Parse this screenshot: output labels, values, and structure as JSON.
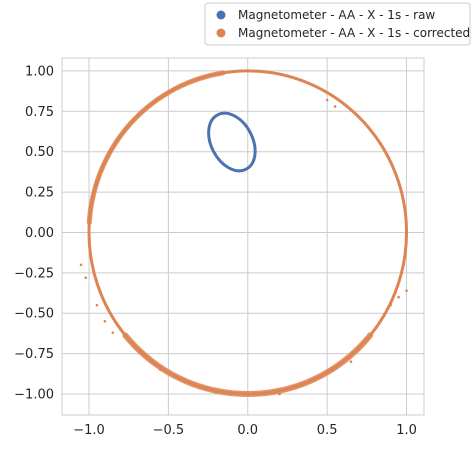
{
  "chart_data": {
    "type": "scatter",
    "title": "",
    "xlabel": "",
    "ylabel": "",
    "xlim": [
      -1.17,
      1.11
    ],
    "ylim": [
      -1.13,
      1.08
    ],
    "grid": true,
    "legend_placement": "top-right, above plot",
    "x_ticks": [
      {
        "value": -1.0,
        "label": "−1.0"
      },
      {
        "value": -0.5,
        "label": "−0.5"
      },
      {
        "value": 0.0,
        "label": "0.0"
      },
      {
        "value": 0.5,
        "label": "0.5"
      },
      {
        "value": 1.0,
        "label": "1.0"
      }
    ],
    "y_ticks": [
      {
        "value": 1.0,
        "label": "1.00"
      },
      {
        "value": 0.75,
        "label": "0.75"
      },
      {
        "value": 0.5,
        "label": "0.50"
      },
      {
        "value": 0.25,
        "label": "0.25"
      },
      {
        "value": 0.0,
        "label": "0.00"
      },
      {
        "value": -0.25,
        "label": "−0.25"
      },
      {
        "value": -0.5,
        "label": "−0.50"
      },
      {
        "value": -0.75,
        "label": "−0.75"
      },
      {
        "value": -1.0,
        "label": "−1.00"
      }
    ],
    "series": [
      {
        "name": "Magnetometer - AA - X - 1s - raw",
        "color": "#4c72b0",
        "shape": "ellipse",
        "center": [
          -0.1,
          0.56
        ],
        "semi_axes": [
          0.13,
          0.19
        ],
        "rotation_deg": 28
      },
      {
        "name": "Magnetometer - AA - X - 1s - corrected",
        "color": "#dd8452",
        "shape": "circle",
        "center": [
          0.0,
          0.0
        ],
        "radius": 1.0,
        "stray_points": [
          [
            -1.05,
            -0.2
          ],
          [
            -1.02,
            -0.28
          ],
          [
            -0.95,
            -0.45
          ],
          [
            -0.9,
            -0.55
          ],
          [
            -0.85,
            -0.62
          ],
          [
            0.9,
            -0.45
          ],
          [
            0.95,
            -0.4
          ],
          [
            1.0,
            -0.36
          ],
          [
            0.5,
            0.82
          ],
          [
            0.55,
            0.78
          ],
          [
            -0.3,
            0.95
          ],
          [
            0.65,
            -0.8
          ],
          [
            0.7,
            -0.72
          ],
          [
            -0.55,
            -0.85
          ],
          [
            0.2,
            -1.0
          ],
          [
            -0.2,
            -0.99
          ]
        ]
      }
    ]
  }
}
